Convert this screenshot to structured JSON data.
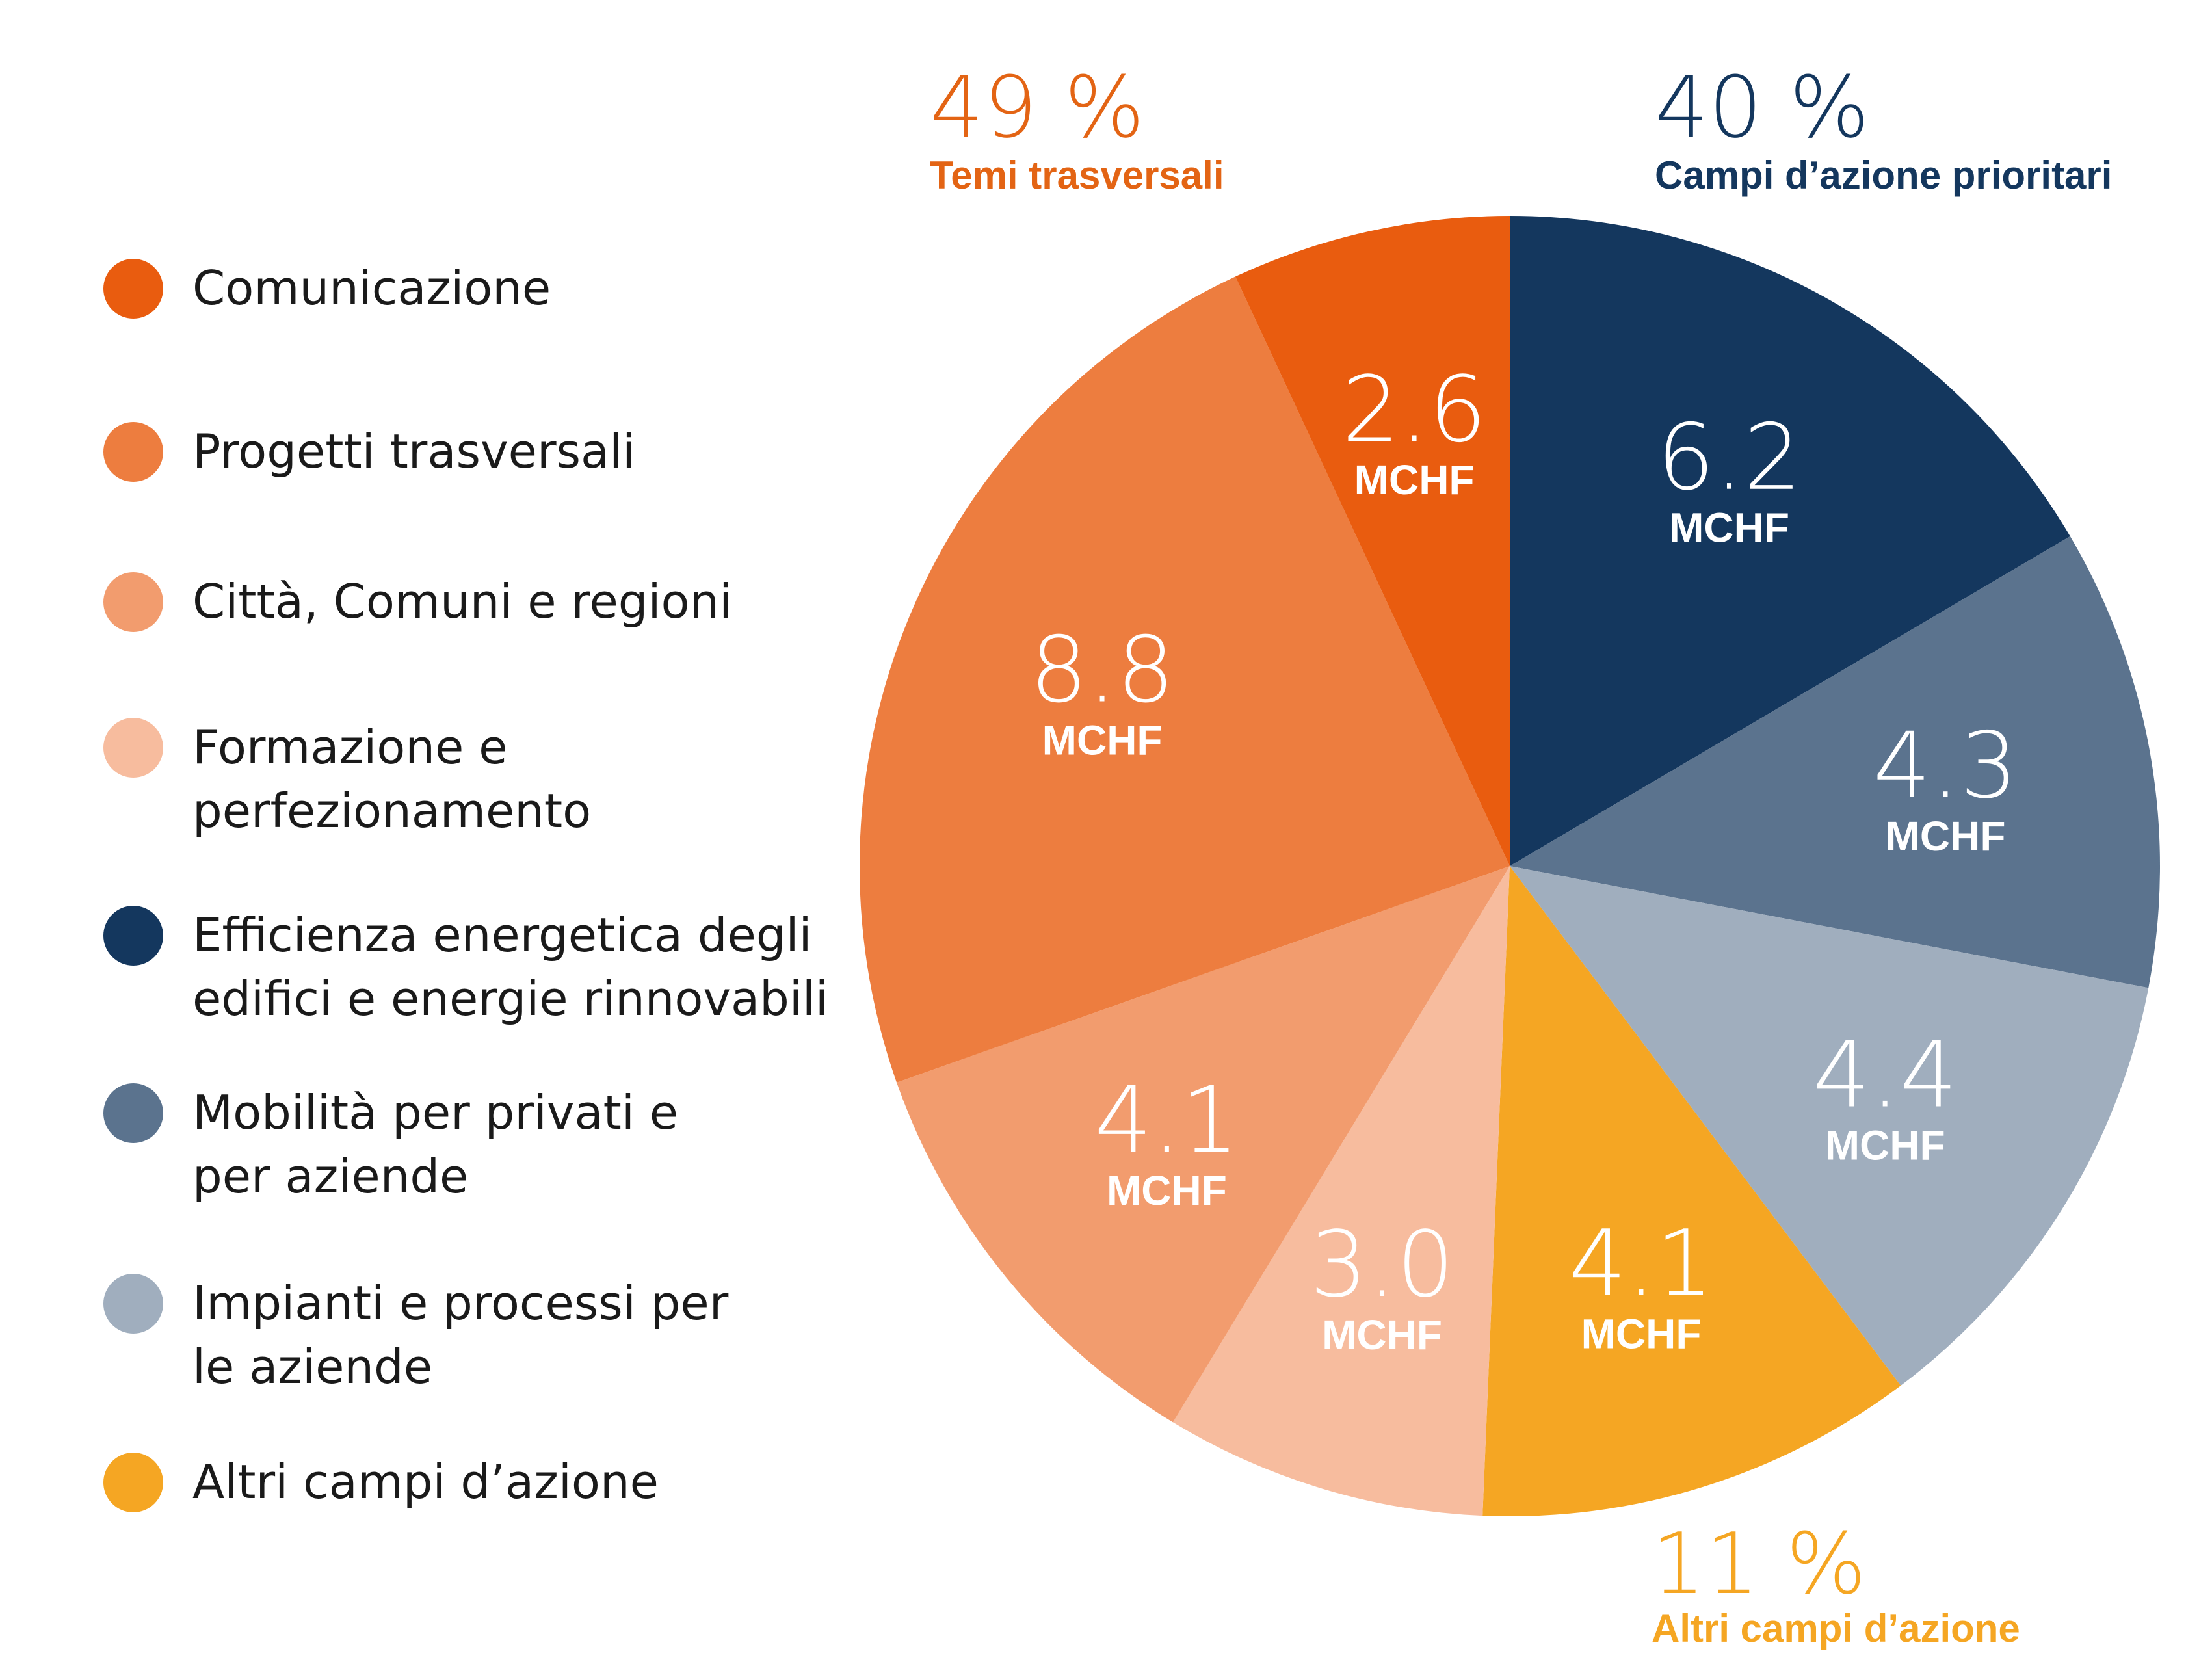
{
  "chart_data": {
    "type": "pie",
    "unit": "MCHF",
    "categories": [
      "Efficienza energetica degli edifici e energie rinnovabili",
      "Mobilità per privati e per aziende",
      "Impianti e processi per le aziende",
      "Altri campi d’azione",
      "Formazione e perfezionamento",
      "Città, Comuni e regioni",
      "Progetti trasversali",
      "Comunicazione"
    ],
    "values": [
      6.2,
      4.3,
      4.4,
      4.1,
      3.0,
      4.1,
      8.8,
      2.6
    ],
    "value_labels": [
      "6.2",
      "4.3",
      "4.4",
      "4.1",
      "3.0",
      "4.1",
      "8.8",
      "2.6"
    ],
    "colors": [
      "#14375e",
      "#5b738e",
      "#a0aebe",
      "#f5a623",
      "#f7bc9e",
      "#f29c6e",
      "#ed7d3f",
      "#e95c0f"
    ],
    "legend": {
      "placement": "left",
      "items": [
        {
          "lines": [
            "Comunicazione"
          ],
          "color": "#e95c0f"
        },
        {
          "lines": [
            "Progetti trasversali"
          ],
          "color": "#ed7d3f"
        },
        {
          "lines": [
            "Città, Comuni e regioni"
          ],
          "color": "#f29c6e"
        },
        {
          "lines": [
            "Formazione e",
            "perfezionamento"
          ],
          "color": "#f7bc9e"
        },
        {
          "lines": [
            "Efficienza energetica degli",
            "edifici e energie rinnovabili"
          ],
          "color": "#14375e"
        },
        {
          "lines": [
            "Mobilità per privati e",
            "per aziende"
          ],
          "color": "#5b738e"
        },
        {
          "lines": [
            "Impianti e processi per",
            "le aziende"
          ],
          "color": "#a0aebe"
        },
        {
          "lines": [
            "Altri campi d’azione"
          ],
          "color": "#f5a623"
        }
      ]
    },
    "groups": [
      {
        "pct": "40 %",
        "name": "Campi d’azione prioritari",
        "color": "#14375e"
      },
      {
        "pct": "11 %",
        "name": "Altri campi d’azione",
        "color": "#f5a623"
      },
      {
        "pct": "49 %",
        "name": "Temi trasversali",
        "color": "#e36414"
      }
    ]
  }
}
